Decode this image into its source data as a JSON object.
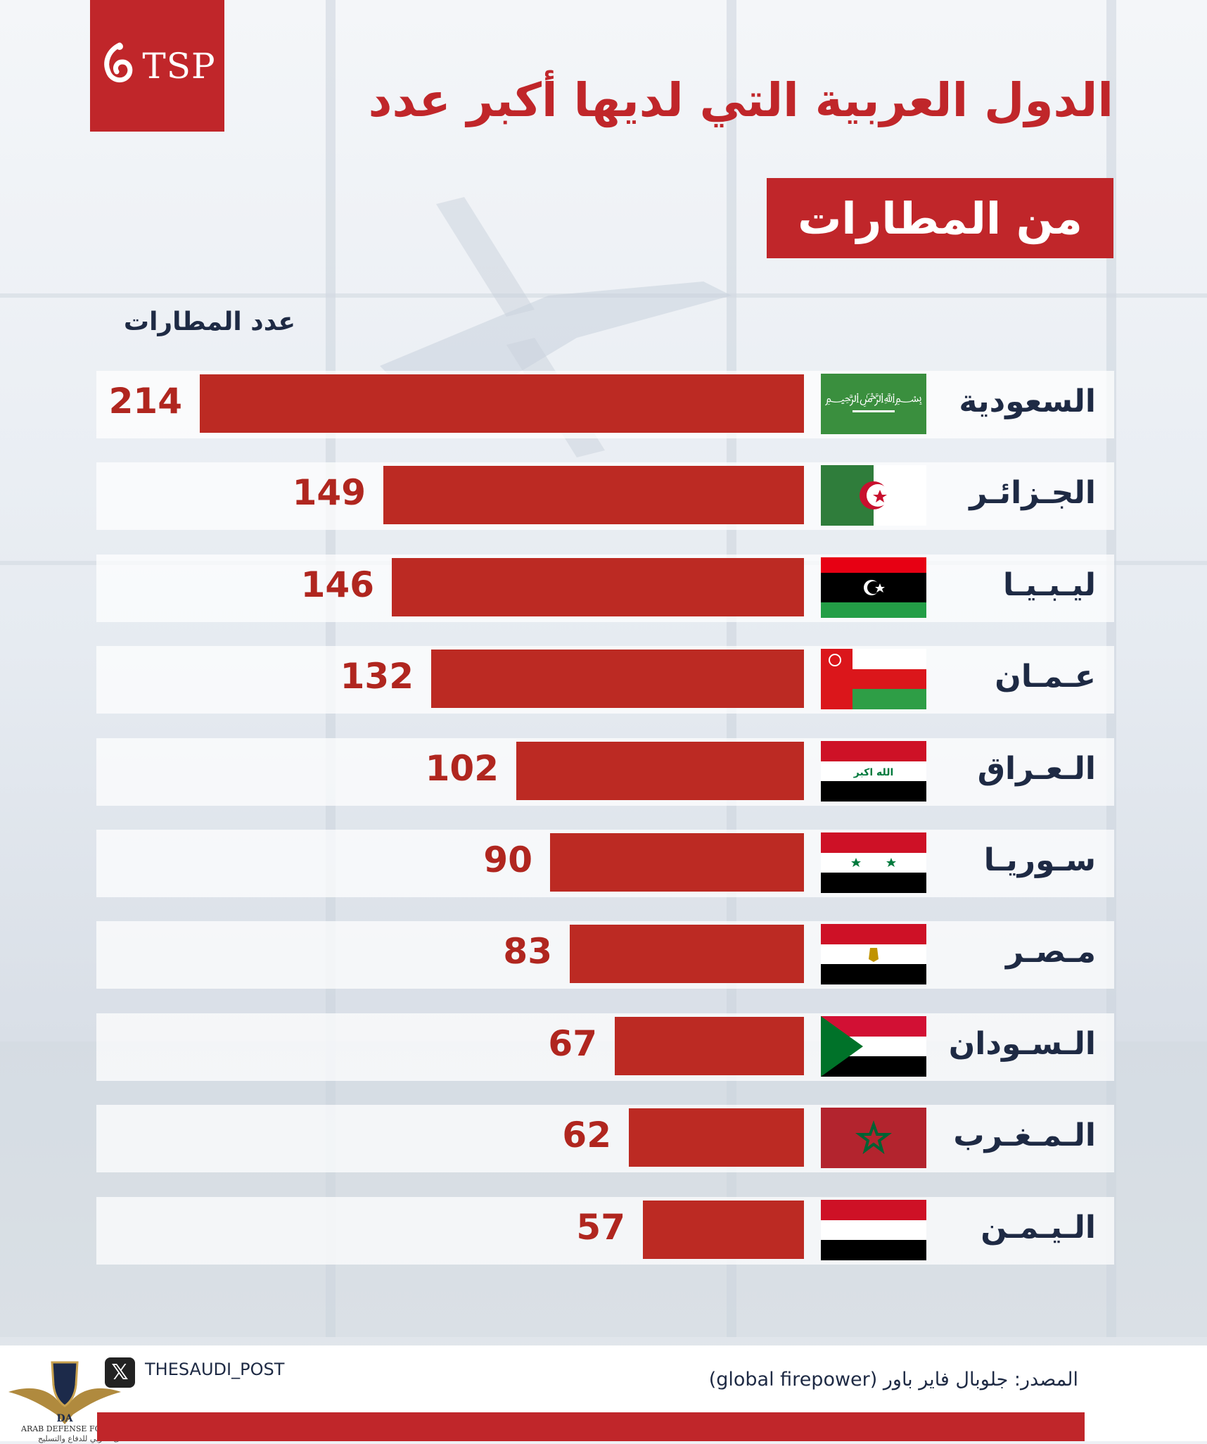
{
  "brand": {
    "logo_text": "TSP"
  },
  "header": {
    "title": "الدول العربية التي لديها أكبر عدد",
    "subtitle": "من المطارات"
  },
  "colors": {
    "accent": "#c0262a",
    "bar": "#bc2a23",
    "value": "#b0261f",
    "text": "#1e2a44"
  },
  "chart_data": {
    "type": "bar",
    "orientation": "horizontal",
    "title": "الدول العربية التي لديها أكبر عدد من المطارات",
    "value_label": "عدد المطارات",
    "categories": [
      "السعودية",
      "الجـزائـر",
      "ليـبـيـا",
      "عـمـان",
      "الـعـراق",
      "سـوريـا",
      "مـصـر",
      "الـسـودان",
      "الـمـغـرب",
      "الـيـمـن"
    ],
    "values": [
      214,
      149,
      146,
      132,
      102,
      90,
      83,
      67,
      62,
      57
    ],
    "flags": [
      "saudi-arabia-flag",
      "algeria-flag",
      "libya-flag",
      "oman-flag",
      "iraq-flag",
      "syria-flag",
      "egypt-flag",
      "sudan-flag",
      "morocco-flag",
      "yemen-flag"
    ]
  },
  "footer": {
    "social_icon": "x-icon",
    "handle": "THESAUDI_POST",
    "source": "المصدر: جلوبال فاير باور (global firepower)",
    "watermark_line1": "ARAB DEFENSE FORUM",
    "watermark_line2": "المنتدى العربي للدفاع والتسليح"
  }
}
